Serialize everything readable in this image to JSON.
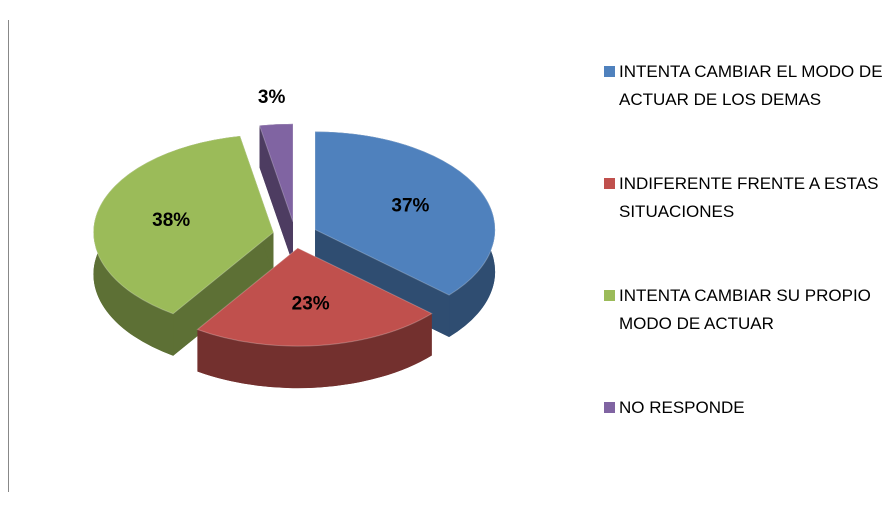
{
  "chart_data": {
    "type": "pie",
    "categories": [
      "INTENTA CAMBIAR EL MODO DE ACTUAR DE LOS DEMAS",
      "INDIFERENTE FRENTE A ESTAS SITUACIONES",
      "INTENTA CAMBIAR SU PROPIO MODO DE ACTUAR",
      "NO RESPONDE"
    ],
    "values": [
      37,
      23,
      38,
      3
    ],
    "value_labels": [
      "37%",
      "23%",
      "38%",
      "3%"
    ],
    "colors": [
      "#4f81bd",
      "#c0504d",
      "#9bbb59",
      "#8064a2"
    ],
    "legend": "right"
  }
}
